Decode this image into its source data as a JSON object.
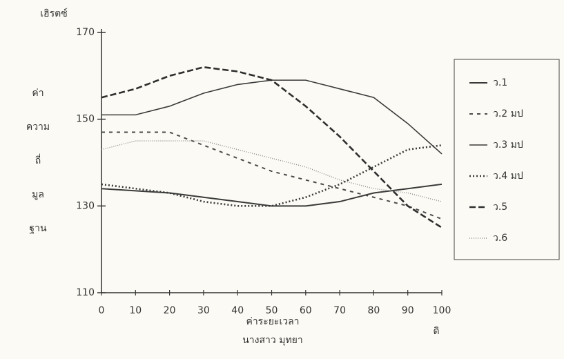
{
  "chart_data": {
    "type": "line",
    "y_unit_label": "เฮิรตซ์",
    "y_label_lines": [
      "ค่า",
      "ความ",
      "ถี่",
      "มูล",
      "ฐาน"
    ],
    "x_label": "ค่าระยะเวลา",
    "author": "นางสาว มุทยา",
    "corner_note": "ดิ",
    "x": [
      0,
      10,
      20,
      30,
      40,
      50,
      60,
      70,
      80,
      90,
      100
    ],
    "xlim": [
      0,
      100
    ],
    "xticks": [
      0,
      10,
      20,
      30,
      40,
      50,
      60,
      70,
      80,
      90,
      100
    ],
    "ylim": [
      110,
      170
    ],
    "yticks": [
      110,
      130,
      150,
      170
    ],
    "legend_position": "right",
    "series": [
      {
        "name": "ว.1",
        "color": "#3a3a3a",
        "dash": "none",
        "width": 2,
        "values": [
          134,
          133.5,
          133,
          132,
          131,
          130,
          130,
          131,
          133,
          134,
          135
        ]
      },
      {
        "name": "ว.2 มป",
        "color": "#4a4a4a",
        "dash": "5,6",
        "width": 2,
        "values": [
          147,
          147,
          147,
          144,
          141,
          138,
          136,
          134,
          132,
          130,
          127
        ]
      },
      {
        "name": "ว.3 มป",
        "color": "#3a3a3a",
        "dash": "none",
        "width": 1.6,
        "values": [
          151,
          151,
          153,
          156,
          158,
          159,
          159,
          157,
          155,
          149,
          142
        ]
      },
      {
        "name": "ว.4 มป",
        "color": "#3a3a3a",
        "dash": "2,3",
        "width": 2.6,
        "values": [
          135,
          134,
          133,
          131,
          130,
          130,
          132,
          135,
          139,
          143,
          144
        ]
      },
      {
        "name": "ว.5",
        "color": "#2e2e2e",
        "dash": "9,4",
        "width": 2.6,
        "values": [
          155,
          157,
          160,
          162,
          161,
          159,
          153,
          146,
          138,
          130,
          125
        ]
      },
      {
        "name": "ว.6",
        "color": "#8a8a8a",
        "dash": "1,2",
        "width": 1.4,
        "values": [
          143,
          145,
          145,
          145,
          143,
          141,
          139,
          136,
          134,
          133,
          131
        ]
      }
    ]
  }
}
